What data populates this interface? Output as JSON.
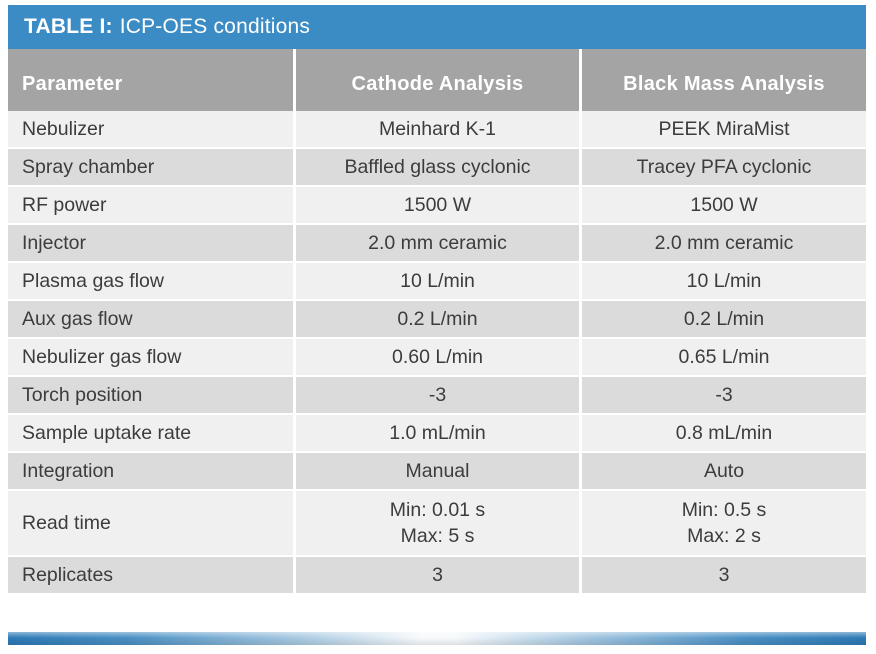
{
  "colors": {
    "title_blue": "#3b8cc5",
    "header_gray": "#a5a4a4",
    "row_light": "#f1f0f0",
    "row_dark": "#dcdbdb",
    "body_text": "#3c3c3c",
    "bar_edge_blue": "#2d7ab6"
  },
  "title": {
    "prefix": "TABLE I:",
    "text": "ICP-OES conditions"
  },
  "table": {
    "columns": [
      "Parameter",
      "Cathode Analysis",
      "Black Mass Analysis"
    ],
    "rows": [
      {
        "parameter": "Nebulizer",
        "cathode": "Meinhard K-1",
        "black_mass": "PEEK MiraMist"
      },
      {
        "parameter": "Spray chamber",
        "cathode": "Baffled glass cyclonic",
        "black_mass": "Tracey PFA cyclonic"
      },
      {
        "parameter": "RF power",
        "cathode": "1500 W",
        "black_mass": "1500 W"
      },
      {
        "parameter": "Injector",
        "cathode": "2.0 mm ceramic",
        "black_mass": "2.0 mm ceramic"
      },
      {
        "parameter": "Plasma gas flow",
        "cathode": "10 L/min",
        "black_mass": "10 L/min"
      },
      {
        "parameter": "Aux gas flow",
        "cathode": "0.2 L/min",
        "black_mass": "0.2 L/min"
      },
      {
        "parameter": "Nebulizer gas flow",
        "cathode": "0.60 L/min",
        "black_mass": "0.65 L/min"
      },
      {
        "parameter": "Torch position",
        "cathode": "-3",
        "black_mass": "-3"
      },
      {
        "parameter": "Sample uptake rate",
        "cathode": "1.0 mL/min",
        "black_mass": "0.8 mL/min"
      },
      {
        "parameter": "Integration",
        "cathode": "Manual",
        "black_mass": "Auto"
      },
      {
        "parameter": "Read time",
        "cathode": "Min: 0.01 s\nMax: 5 s",
        "black_mass": "Min: 0.5 s\nMax: 2 s",
        "tall": true
      },
      {
        "parameter": "Replicates",
        "cathode": "3",
        "black_mass": "3"
      }
    ]
  }
}
